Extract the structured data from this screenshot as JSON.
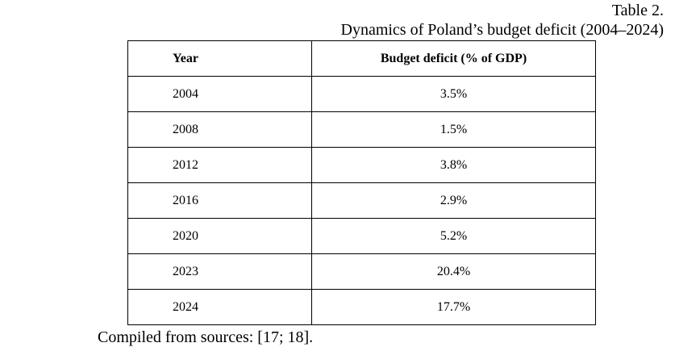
{
  "caption": {
    "label": "Table 2.",
    "title": "Dynamics of Poland’s budget deficit (2004–2024)"
  },
  "table": {
    "headers": {
      "year": "Year",
      "deficit": "Budget deficit (% of GDP)"
    },
    "rows": [
      {
        "year": "2004",
        "deficit": "3.5%"
      },
      {
        "year": "2008",
        "deficit": "1.5%"
      },
      {
        "year": "2012",
        "deficit": "3.8%"
      },
      {
        "year": "2016",
        "deficit": "2.9%"
      },
      {
        "year": "2020",
        "deficit": "5.2%"
      },
      {
        "year": "2023",
        "deficit": "20.4%"
      },
      {
        "year": "2024",
        "deficit": "17.7%"
      }
    ]
  },
  "source_note": "Compiled from sources: [17; 18]."
}
